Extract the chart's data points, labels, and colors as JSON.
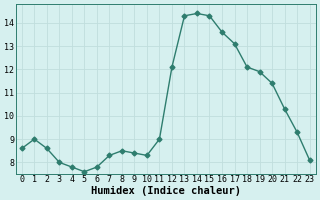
{
  "x": [
    0,
    1,
    2,
    3,
    4,
    5,
    6,
    7,
    8,
    9,
    10,
    11,
    12,
    13,
    14,
    15,
    16,
    17,
    18,
    19,
    20,
    21,
    22,
    23
  ],
  "y": [
    8.6,
    9.0,
    8.6,
    8.0,
    7.8,
    7.6,
    7.8,
    8.3,
    8.5,
    8.4,
    8.3,
    9.0,
    12.1,
    14.3,
    14.4,
    14.3,
    13.6,
    13.1,
    12.1,
    11.9,
    11.4,
    10.3,
    9.3,
    8.1
  ],
  "line_color": "#2e7d6e",
  "marker": "D",
  "markersize": 2.5,
  "linewidth": 1.0,
  "xlabel": "Humidex (Indice chaleur)",
  "ylim": [
    7.5,
    14.8
  ],
  "xlim": [
    -0.5,
    23.5
  ],
  "yticks": [
    8,
    9,
    10,
    11,
    12,
    13,
    14
  ],
  "xtick_labels": [
    "0",
    "1",
    "2",
    "3",
    "4",
    "5",
    "6",
    "7",
    "8",
    "9",
    "10",
    "11",
    "12",
    "13",
    "14",
    "15",
    "16",
    "17",
    "18",
    "19",
    "20",
    "21",
    "22",
    "23"
  ],
  "background_color": "#d6f0ef",
  "grid_color": "#c0dedd",
  "xlabel_fontsize": 7.5,
  "tick_fontsize": 6.0
}
